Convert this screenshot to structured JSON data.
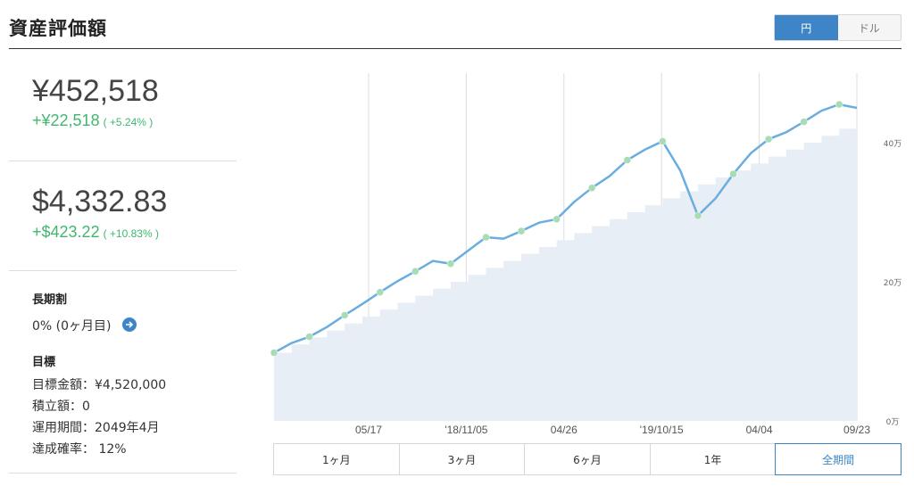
{
  "header": {
    "title": "資産評価額"
  },
  "currency_toggle": {
    "options": [
      "円",
      "ドル"
    ],
    "selected": "円"
  },
  "summary": {
    "yen_total": "¥452,518",
    "yen_change": "+¥22,518",
    "yen_change_pct": "( +5.24% )",
    "usd_total": "$4,332.83",
    "usd_change": "+$423.22",
    "usd_change_pct": "( +10.83% )"
  },
  "long_term": {
    "label": "長期割",
    "value": "0% (0ヶ月目)"
  },
  "goal": {
    "label": "目標",
    "amount": "目標金額：¥4,520,000",
    "installment": "積立額：0",
    "period": "運用期間：2049年4月",
    "probability": "達成確率： 12%"
  },
  "periods": {
    "labels": [
      "1ヶ月",
      "3ヶ月",
      "6ヶ月",
      "1年",
      "全期間"
    ],
    "selected": "全期間"
  },
  "colors": {
    "accent": "#3d85c6",
    "positive": "#3fb86e",
    "line": "#6aaee0",
    "area": "#e8eef6",
    "marker": "#a7dcb4"
  },
  "chart_data": {
    "type": "line",
    "x_ticks": [
      "05/17",
      "'18/11/05",
      "04/26",
      "'19/10/15",
      "04/04",
      "09/23"
    ],
    "y_ticks": [
      "0万",
      "20万",
      "40万"
    ],
    "ylim": [
      0,
      50
    ],
    "series": [
      {
        "values": [
          9.8,
          11.2,
          12.1,
          13.5,
          15.2,
          16.8,
          18.5,
          20.1,
          21.5,
          23.0,
          22.6,
          24.5,
          26.4,
          26.2,
          27.3,
          28.5,
          29.0,
          31.5,
          33.5,
          35.2,
          37.5,
          39.0,
          40.2,
          36.0,
          29.5,
          32.0,
          35.5,
          38.5,
          40.5,
          41.5,
          43.0,
          44.6,
          45.5,
          45.0
        ]
      },
      {
        "values": [
          9.8,
          11.0,
          12.0,
          13.0,
          14.0,
          15.0,
          16.0,
          17.0,
          18.0,
          19.0,
          20.0,
          21.0,
          22.0,
          23.0,
          24.0,
          25.0,
          26.0,
          27.0,
          28.0,
          29.0,
          30.0,
          31.0,
          32.0,
          33.0,
          34.0,
          35.0,
          36.0,
          37.0,
          38.0,
          39.0,
          40.0,
          41.0,
          42.0,
          43.0
        ]
      }
    ],
    "markers_x_index": [
      0,
      2,
      4,
      6,
      8,
      10,
      12,
      14,
      16,
      18,
      20,
      22,
      24,
      26,
      28,
      30,
      32
    ]
  }
}
